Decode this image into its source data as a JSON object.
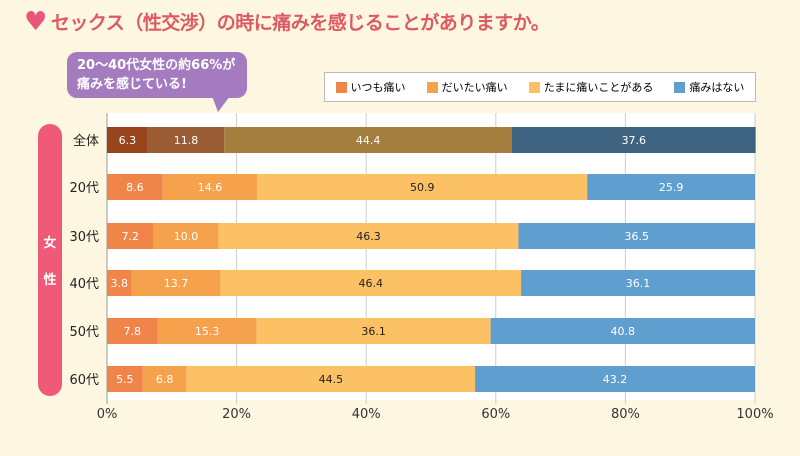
{
  "title": "セックス（性交渉）の時に痛みを感じることがありますか。",
  "callout": [
    "20〜40代女性の約66%が",
    "痛みを感じている!"
  ],
  "side_label": [
    "女",
    "性"
  ],
  "chart_data": {
    "type": "bar",
    "orientation": "horizontal-stacked",
    "categories": [
      "全体",
      "20代",
      "30代",
      "40代",
      "50代",
      "60代"
    ],
    "series": [
      {
        "name": "いつも痛い",
        "color": "#f0854a",
        "values": [
          6.3,
          8.6,
          7.2,
          3.8,
          7.8,
          5.5
        ]
      },
      {
        "name": "だいたい痛い",
        "color": "#f6a14c",
        "values": [
          11.8,
          14.6,
          10.0,
          13.7,
          15.3,
          6.8
        ]
      },
      {
        "name": "たまに痛いことがある",
        "color": "#fcc065",
        "values": [
          44.4,
          50.9,
          46.3,
          46.4,
          36.1,
          44.5
        ]
      },
      {
        "name": "痛みはない",
        "color": "#5f9fcf",
        "values": [
          37.6,
          25.9,
          36.5,
          36.1,
          40.8,
          43.2
        ]
      }
    ],
    "total_row_colors": [
      "#98441c",
      "#9a5c35",
      "#a37e3e",
      "#3f6482"
    ],
    "xlim": [
      0,
      100
    ],
    "xticks": [
      "0%",
      "20%",
      "40%",
      "60%",
      "80%",
      "100%"
    ],
    "grid": true,
    "legend": "top-right"
  }
}
